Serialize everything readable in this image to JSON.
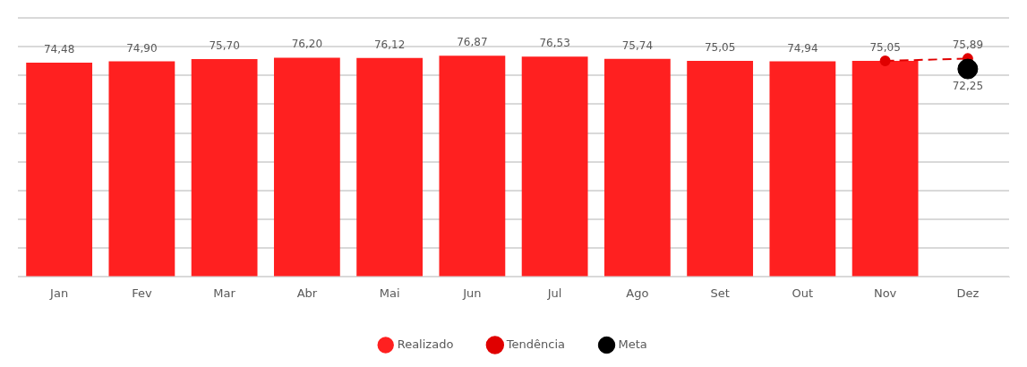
{
  "chart_data": {
    "type": "bar",
    "categories": [
      "Jan",
      "Fev",
      "Mar",
      "Abr",
      "Mai",
      "Jun",
      "Jul",
      "Ago",
      "Set",
      "Out",
      "Nov",
      "Dez"
    ],
    "series": [
      {
        "name": "Realizado",
        "color": "#ff2020",
        "values": [
          74.48,
          74.9,
          75.7,
          76.2,
          76.12,
          76.87,
          76.53,
          75.74,
          75.05,
          74.94,
          75.05,
          null
        ],
        "value_labels": [
          "74,48",
          "74,90",
          "75,70",
          "76,20",
          "76,12",
          "76,87",
          "76,53",
          "75,74",
          "75,05",
          "74,94",
          "75,05",
          null
        ]
      },
      {
        "name": "Tendência",
        "type": "line",
        "color": "#e00000",
        "line_style": "dashed",
        "marker": "circle",
        "values": [
          null,
          null,
          null,
          null,
          null,
          null,
          null,
          null,
          null,
          null,
          75.05,
          75.89
        ],
        "value_labels": [
          null,
          null,
          null,
          null,
          null,
          null,
          null,
          null,
          null,
          null,
          null,
          "75,89"
        ]
      },
      {
        "name": "Meta",
        "type": "scatter",
        "color": "#000000",
        "marker": "circle",
        "x": [
          "Dez"
        ],
        "values": [
          72.25
        ],
        "value_labels": [
          "72,25"
        ]
      }
    ],
    "ylim": [
      0,
      90
    ],
    "yticks": [
      {
        "value": 0,
        "label": null
      },
      {
        "value": 10,
        "label": null
      },
      {
        "value": 20,
        "label": null
      },
      {
        "value": 30,
        "label": null
      },
      {
        "value": 40,
        "label": null
      },
      {
        "value": 50,
        "label": null
      },
      {
        "value": 60,
        "label": null
      },
      {
        "value": 70,
        "label": null
      },
      {
        "value": 80,
        "label": null
      },
      {
        "value": 90,
        "label": null
      }
    ],
    "grid": "y",
    "legend": "bottom",
    "tick_labels": "x"
  }
}
